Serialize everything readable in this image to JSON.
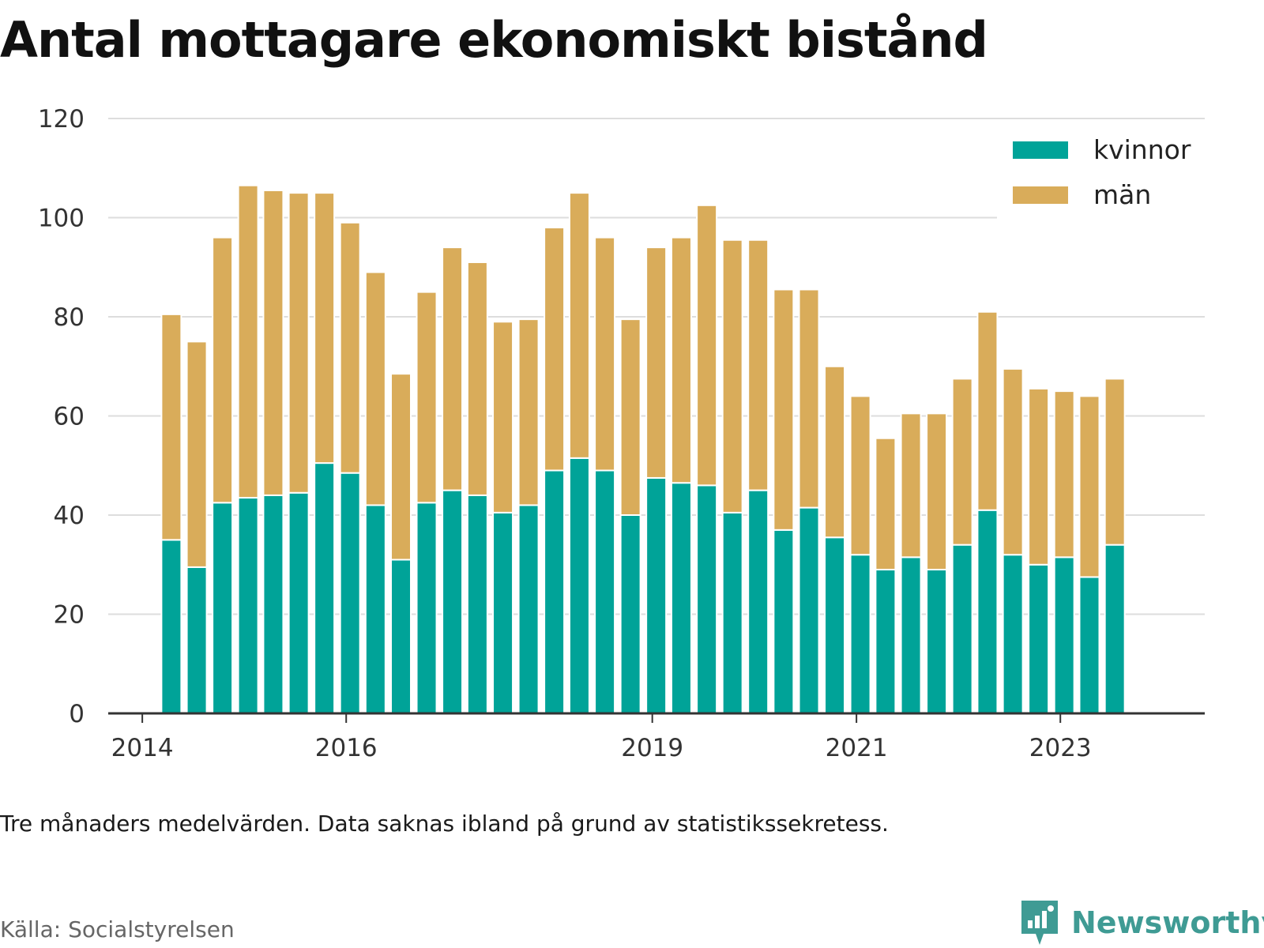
{
  "title": "Antal mottagare ekonomiskt bistånd",
  "note": "Tre månaders medelvärden. Data saknas ibland på grund av statistikssekretess.",
  "source": "Källa: Socialstyrelsen",
  "brand": "Newsworthy",
  "colors": {
    "kvinnor": "#00a398",
    "man": "#d9ac5a",
    "grid": "#dddddd",
    "axis": "#333333",
    "brand": "#3f9b94"
  },
  "chart_data": {
    "type": "bar",
    "stacked": true,
    "ylim": [
      0,
      120
    ],
    "yticks": [
      0,
      20,
      40,
      60,
      80,
      100,
      120
    ],
    "xlim": [
      "2013-09-01",
      "2024-06-01"
    ],
    "xticks": [
      {
        "label": "2014",
        "date": "2014-01-01"
      },
      {
        "label": "2016",
        "date": "2016-01-01"
      },
      {
        "label": "2019",
        "date": "2019-01-01"
      },
      {
        "label": "2021",
        "date": "2021-01-01"
      },
      {
        "label": "2023",
        "date": "2023-01-01"
      }
    ],
    "grid": true,
    "legend_position": "top-right",
    "x": [
      "2014-04-15",
      "2014-07-15",
      "2014-10-15",
      "2015-01-15",
      "2015-04-15",
      "2015-07-15",
      "2015-10-15",
      "2016-01-15",
      "2016-04-15",
      "2016-07-15",
      "2016-10-15",
      "2017-01-15",
      "2017-04-15",
      "2017-07-15",
      "2017-10-15",
      "2018-01-15",
      "2018-04-15",
      "2018-07-15",
      "2018-10-15",
      "2019-01-15",
      "2019-04-15",
      "2019-07-15",
      "2019-10-15",
      "2020-01-15",
      "2020-04-15",
      "2020-07-15",
      "2020-10-15",
      "2021-01-15",
      "2021-04-15",
      "2021-07-15",
      "2021-10-15",
      "2022-01-15",
      "2022-04-15",
      "2022-07-15",
      "2022-10-15",
      "2023-01-15",
      "2023-04-15",
      "2023-07-15"
    ],
    "series": [
      {
        "name": "kvinnor",
        "color": "#00a398",
        "values": [
          35,
          29.5,
          42.5,
          43.5,
          44,
          44.5,
          50.5,
          48.5,
          42,
          31,
          42.5,
          45,
          44,
          40.5,
          42,
          49,
          51.5,
          49,
          40,
          47.5,
          46.5,
          46,
          40.5,
          45,
          37,
          41.5,
          35.5,
          32,
          29,
          31.5,
          29,
          34,
          41,
          32,
          30,
          31.5,
          27.5,
          34
        ]
      },
      {
        "name": "män",
        "color": "#d9ac5a",
        "values": [
          45.5,
          45.5,
          53.5,
          63,
          61.5,
          60.5,
          54.5,
          50.5,
          47,
          37.5,
          42.5,
          49,
          47,
          38.5,
          37.5,
          49,
          53.5,
          47,
          39.5,
          46.5,
          49.5,
          56.5,
          55,
          50.5,
          48.5,
          44,
          34.5,
          32,
          26.5,
          29,
          31.5,
          33.5,
          40,
          37.5,
          35.5,
          33.5,
          36.5,
          33.5
        ]
      }
    ]
  }
}
